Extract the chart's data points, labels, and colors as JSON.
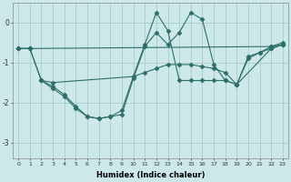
{
  "background_color": "#cce8e8",
  "grid_color": "#aacccc",
  "line_color": "#2d6e6a",
  "xlabel": "Humidex (Indice chaleur)",
  "ylim": [
    -3.4,
    0.5
  ],
  "xlim": [
    -0.5,
    23.5
  ],
  "yticks": [
    -3,
    -2,
    -1,
    0
  ],
  "figsize": [
    3.2,
    2.0
  ],
  "dpi": 100,
  "series": [
    {
      "x": [
        0,
        1,
        22,
        23
      ],
      "y": [
        -0.65,
        -0.65,
        -0.6,
        -0.55
      ],
      "marker": "D",
      "markersize": 2.5,
      "linestyle": "-"
    },
    {
      "x": [
        0,
        1,
        2,
        3,
        10,
        11,
        12,
        13,
        14,
        15,
        16,
        17,
        18,
        19,
        20,
        21,
        22,
        23
      ],
      "y": [
        -0.65,
        -0.65,
        -1.45,
        -1.5,
        -1.35,
        -1.25,
        -1.15,
        -1.05,
        -1.05,
        -1.05,
        -1.1,
        -1.15,
        -1.25,
        -1.55,
        -0.9,
        -0.75,
        -0.65,
        -0.55
      ],
      "marker": "D",
      "markersize": 2.5,
      "linestyle": "-"
    },
    {
      "x": [
        0,
        1,
        2,
        3,
        4,
        5,
        6,
        7,
        8,
        9,
        10,
        11,
        12,
        13,
        14,
        15,
        16,
        17,
        18,
        19,
        22,
        23
      ],
      "y": [
        -0.65,
        -0.65,
        -1.45,
        -1.65,
        -1.85,
        -2.15,
        -2.35,
        -2.4,
        -2.35,
        -2.2,
        -1.35,
        -0.55,
        0.25,
        -0.2,
        -1.45,
        -1.45,
        -1.45,
        -1.45,
        -1.45,
        -1.55,
        -0.65,
        -0.55
      ],
      "marker": "D",
      "markersize": 2.5,
      "linestyle": "-"
    },
    {
      "x": [
        2,
        3,
        4,
        5,
        6,
        7,
        8,
        9,
        10,
        11,
        12,
        13,
        14,
        15,
        16,
        17,
        18,
        19,
        20,
        21,
        22,
        23
      ],
      "y": [
        -1.45,
        -1.6,
        -1.8,
        -2.1,
        -2.35,
        -2.4,
        -2.35,
        -2.3,
        -1.4,
        -0.6,
        -0.25,
        -0.55,
        -0.25,
        0.25,
        0.08,
        -1.05,
        -1.45,
        -1.55,
        -0.85,
        -0.75,
        -0.6,
        -0.5
      ],
      "marker": "D",
      "markersize": 2.5,
      "linestyle": "-"
    }
  ]
}
